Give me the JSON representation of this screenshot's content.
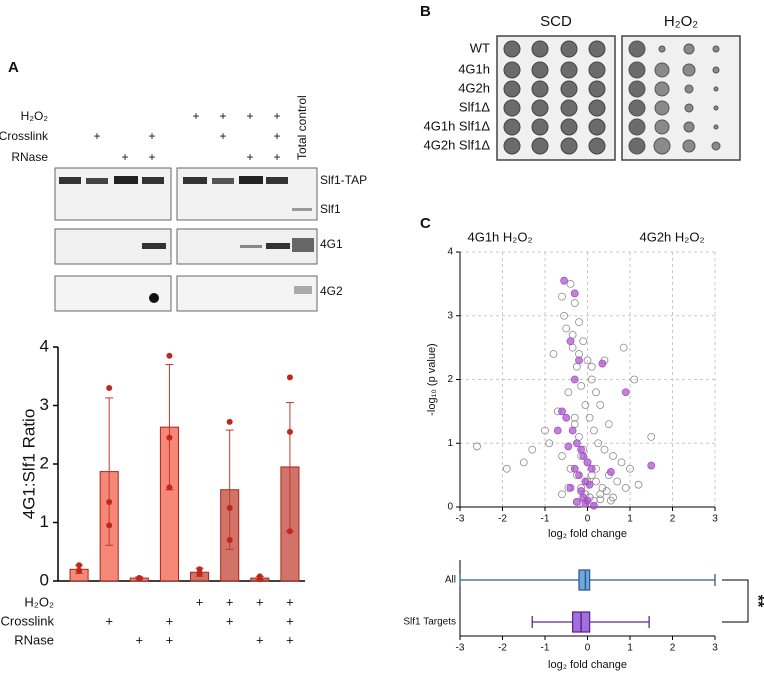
{
  "panel_a": {
    "label": "A",
    "blot_treatments": [
      {
        "label": "H₂O₂",
        "marks": [
          null,
          null,
          null,
          null,
          "+",
          "+",
          "+",
          "+",
          null
        ]
      },
      {
        "label": "Crosslink",
        "marks": [
          null,
          "+",
          null,
          "+",
          null,
          "+",
          null,
          "+",
          null
        ]
      },
      {
        "label": "RNase",
        "marks": [
          null,
          null,
          "+",
          "+",
          null,
          null,
          "+",
          "+",
          null
        ]
      }
    ],
    "total_control": "Total control",
    "bands": [
      "Slf1-TAP",
      "Slf1",
      "4G1",
      "4G2"
    ]
  },
  "panel_b": {
    "label": "B",
    "media": [
      "SCD",
      "H₂O₂"
    ],
    "strains": [
      "WT",
      "4G1h",
      "4G2h",
      "Slf1Δ",
      "4G1h Slf1Δ",
      "4G2h Slf1Δ"
    ]
  },
  "panel_c": {
    "label": "C"
  },
  "chart_data": [
    {
      "type": "bar",
      "y_label": "4G1:Slf1 Ratio",
      "categories": [
        null,
        null,
        null,
        null,
        null,
        null,
        null,
        null
      ],
      "values": [
        0.2,
        1.87,
        0.05,
        2.63,
        0.15,
        1.56,
        0.05,
        1.95
      ],
      "errors": [
        0.07,
        1.26,
        0.02,
        1.07,
        0.07,
        1.02,
        0.03,
        1.1
      ],
      "points": [
        [
          0.27,
          0.18,
          0.17
        ],
        [
          3.3,
          1.35,
          0.95
        ],
        [
          0.05,
          0.05,
          0.05
        ],
        [
          3.85,
          2.45,
          1.6
        ],
        [
          0.2,
          0.12,
          0.13
        ],
        [
          2.72,
          1.25,
          0.7
        ],
        [
          0.08,
          0.04,
          0.03
        ],
        [
          3.48,
          2.55,
          0.85
        ]
      ],
      "colors": [
        "#f4735f",
        "#f4735f",
        "#f4735f",
        "#f4735f",
        "#c95a4e",
        "#c95a4e",
        "#c95a4e",
        "#c95a4e"
      ],
      "point_color": "#c0281e",
      "ylim": [
        0,
        4
      ],
      "yticks": [
        0,
        1,
        2,
        3,
        4
      ],
      "treatments": [
        {
          "label": "H₂O₂",
          "marks": [
            null,
            null,
            null,
            null,
            "+",
            "+",
            "+",
            "+"
          ]
        },
        {
          "label": "Crosslink",
          "marks": [
            null,
            "+",
            null,
            "+",
            null,
            "+",
            null,
            "+"
          ]
        },
        {
          "label": "RNase",
          "marks": [
            null,
            null,
            "+",
            "+",
            null,
            null,
            "+",
            "+"
          ]
        }
      ]
    },
    {
      "type": "scatter",
      "annotations": [
        "4G1h H₂O₂",
        "4G2h H₂O₂"
      ],
      "x_label": "log₂ fold change",
      "y_label": "-log₁₀ (p value)",
      "xlim": [
        -3,
        3
      ],
      "xticks": [
        -3,
        -2,
        -1,
        0,
        1,
        2,
        3
      ],
      "ylim": [
        0,
        4
      ],
      "yticks": [
        0,
        1,
        2,
        3,
        4
      ],
      "grid": true,
      "series": [
        {
          "color": "#8a8a8a",
          "x": [
            -0.6,
            -0.4,
            -0.3,
            -0.2,
            -0.1,
            0,
            0.1,
            0.2,
            0.3,
            0.5,
            -0.8,
            -0.5,
            -0.35,
            -0.25,
            -0.15,
            -0.05,
            0.05,
            0.15,
            0.25,
            0.4,
            0.6,
            0.8,
            1.0,
            -1.0,
            -0.7,
            -0.45,
            -0.3,
            -0.2,
            -0.1,
            0.0,
            0.1,
            0.2,
            0.35,
            0.5,
            0.7,
            0.9,
            1.2,
            -1.3,
            -0.9,
            -0.6,
            -0.4,
            -0.25,
            -0.15,
            -0.05,
            0.05,
            0.15,
            0.3,
            0.45,
            0.6,
            -2.6,
            -1.9,
            -1.5,
            1.5,
            1.1,
            0.85,
            -0.55,
            -0.35,
            -0.2,
            0.1,
            0.4,
            -0.3,
            -0.15,
            0.0,
            0.2,
            -0.45,
            -0.6,
            0.3,
            -0.1,
            0.55,
            -0.25
          ],
          "values": [
            3.3,
            3.5,
            3.2,
            2.9,
            2.6,
            2.3,
            2.0,
            1.8,
            1.6,
            1.3,
            2.4,
            2.8,
            2.5,
            2.2,
            1.9,
            1.6,
            1.4,
            1.2,
            1.0,
            0.9,
            0.8,
            0.7,
            0.6,
            1.2,
            1.5,
            1.8,
            1.4,
            1.1,
            0.9,
            0.7,
            0.5,
            0.4,
            0.3,
            0.5,
            0.4,
            0.3,
            0.35,
            0.9,
            1.0,
            0.8,
            0.6,
            0.5,
            0.3,
            0.2,
            0.15,
            0.1,
            0.2,
            0.25,
            0.15,
            0.95,
            0.6,
            0.7,
            1.1,
            2.0,
            2.5,
            3.0,
            2.7,
            2.4,
            2.2,
            2.3,
            1.3,
            0.8,
            0.4,
            0.6,
            0.3,
            0.2,
            0.12,
            0.05,
            0.1,
            0.08
          ]
        },
        {
          "color": "#a64fc9",
          "x": [
            -0.55,
            -0.3,
            -0.4,
            -0.2,
            0.35,
            0.9,
            -0.6,
            -0.5,
            -0.35,
            -0.25,
            -0.15,
            -0.1,
            0.0,
            0.1,
            -0.7,
            -0.45,
            -0.3,
            -0.2,
            -0.05,
            0.05,
            1.5,
            0.55,
            -0.4,
            -0.15,
            -0.1,
            0.0,
            -0.25,
            -0.05,
            0.15,
            -0.3
          ],
          "values": [
            3.55,
            3.35,
            2.6,
            2.3,
            2.25,
            1.8,
            1.5,
            1.4,
            1.2,
            1.0,
            0.9,
            0.8,
            0.7,
            0.6,
            1.2,
            0.95,
            0.6,
            0.5,
            0.4,
            0.35,
            0.65,
            0.55,
            0.3,
            0.25,
            0.15,
            0.1,
            0.08,
            0.05,
            0.02,
            2.0
          ]
        }
      ]
    },
    {
      "type": "box",
      "categories": [
        "All",
        "Slf1 Targets"
      ],
      "x_label": "log₂ fold change",
      "xlim": [
        -3,
        3
      ],
      "xticks": [
        -3,
        -2,
        -1,
        0,
        1,
        2,
        3
      ],
      "stats": [
        {
          "min": -3,
          "q1": -0.2,
          "median": -0.05,
          "q3": 0.05,
          "max": 3.0,
          "color": "#6fa8dc",
          "stroke": "#2f5e8a"
        },
        {
          "min": -1.3,
          "q1": -0.35,
          "median": -0.15,
          "q3": 0.05,
          "max": 1.45,
          "color": "#a36ee0",
          "stroke": "#5b2a8a"
        }
      ],
      "annotation": "**"
    }
  ]
}
